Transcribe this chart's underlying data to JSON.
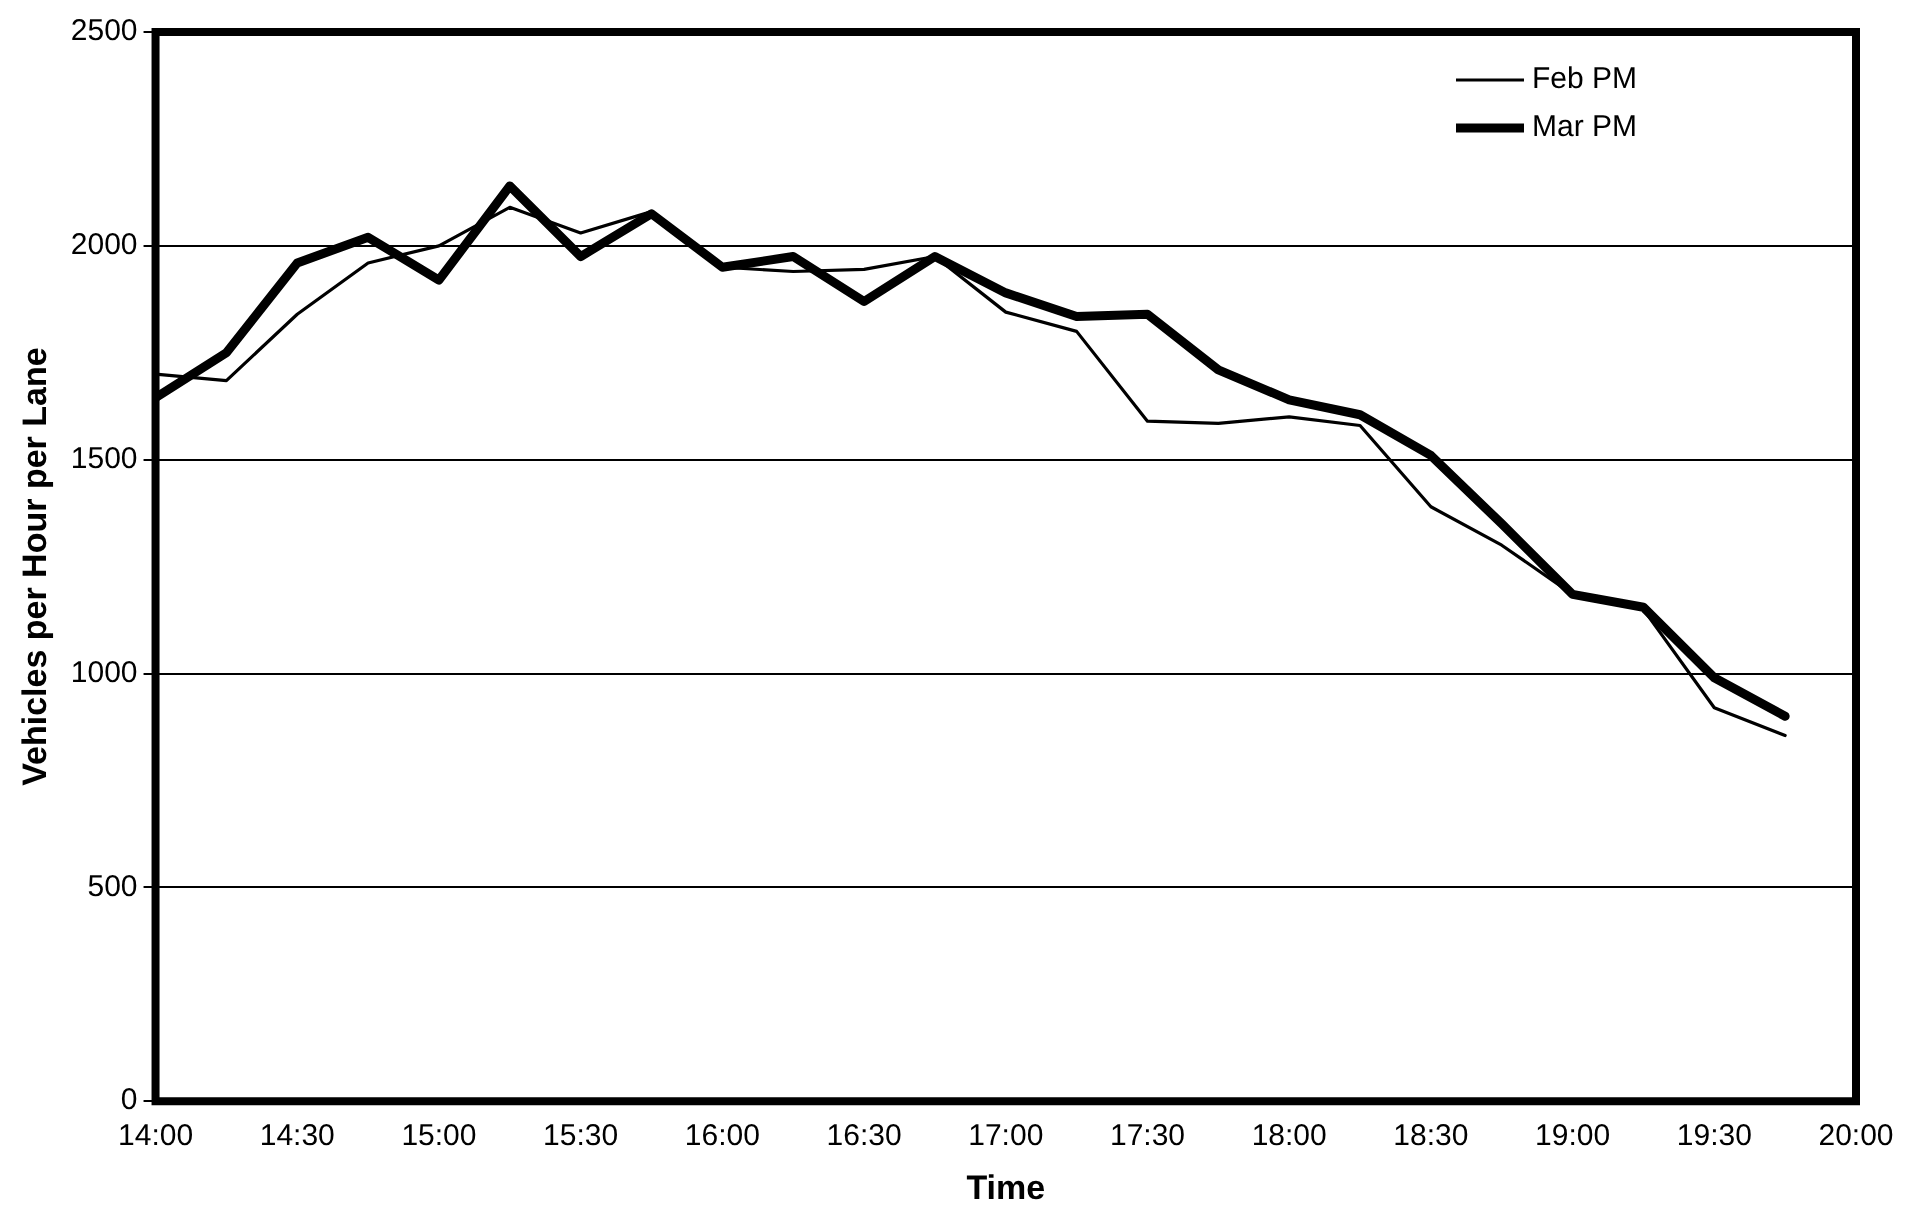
{
  "chart_data": {
    "type": "line",
    "xlabel": "Time",
    "ylabel": "Vehicles per Hour per Lane",
    "x": [
      14,
      14.25,
      14.5,
      14.75,
      15,
      15.25,
      15.5,
      15.75,
      16,
      16.25,
      16.5,
      16.75,
      17,
      17.25,
      17.5,
      17.75,
      18,
      18.25,
      18.5,
      18.75,
      19,
      19.25,
      19.5,
      19.75
    ],
    "series": [
      {
        "name": "Feb PM",
        "color": "#000000",
        "values": [
          1700,
          1685,
          1840,
          1960,
          2000,
          2090,
          2030,
          2080,
          1950,
          1940,
          1945,
          1975,
          1845,
          1800,
          1590,
          1585,
          1600,
          1580,
          1390,
          1300,
          1185,
          1150,
          920,
          855
        ]
      },
      {
        "name": "Mar PM",
        "color": "#000000",
        "values": [
          1645,
          1750,
          1960,
          2020,
          1920,
          2140,
          1975,
          2075,
          1950,
          1975,
          1870,
          1975,
          1890,
          1835,
          1840,
          1710,
          1640,
          1605,
          1510,
          1350,
          1185,
          1155,
          990,
          900
        ]
      }
    ],
    "xlim": [
      14,
      20
    ],
    "xticks": [
      {
        "value": 14,
        "label": "14:00"
      },
      {
        "value": 14.5,
        "label": "14:30"
      },
      {
        "value": 15,
        "label": "15:00"
      },
      {
        "value": 15.5,
        "label": "15:30"
      },
      {
        "value": 16,
        "label": "16:00"
      },
      {
        "value": 16.5,
        "label": "16:30"
      },
      {
        "value": 17,
        "label": "17:00"
      },
      {
        "value": 17.5,
        "label": "17:30"
      },
      {
        "value": 18,
        "label": "18:00"
      },
      {
        "value": 18.5,
        "label": "18:30"
      },
      {
        "value": 19,
        "label": "19:00"
      },
      {
        "value": 19.5,
        "label": "19:30"
      },
      {
        "value": 20,
        "label": "20:00"
      }
    ],
    "ylim": [
      0,
      2500
    ],
    "yticks": [
      0,
      500,
      1000,
      1500,
      2000,
      2500
    ],
    "grid": "y",
    "legend": "top right",
    "marker": "none",
    "line_style": "solid"
  }
}
